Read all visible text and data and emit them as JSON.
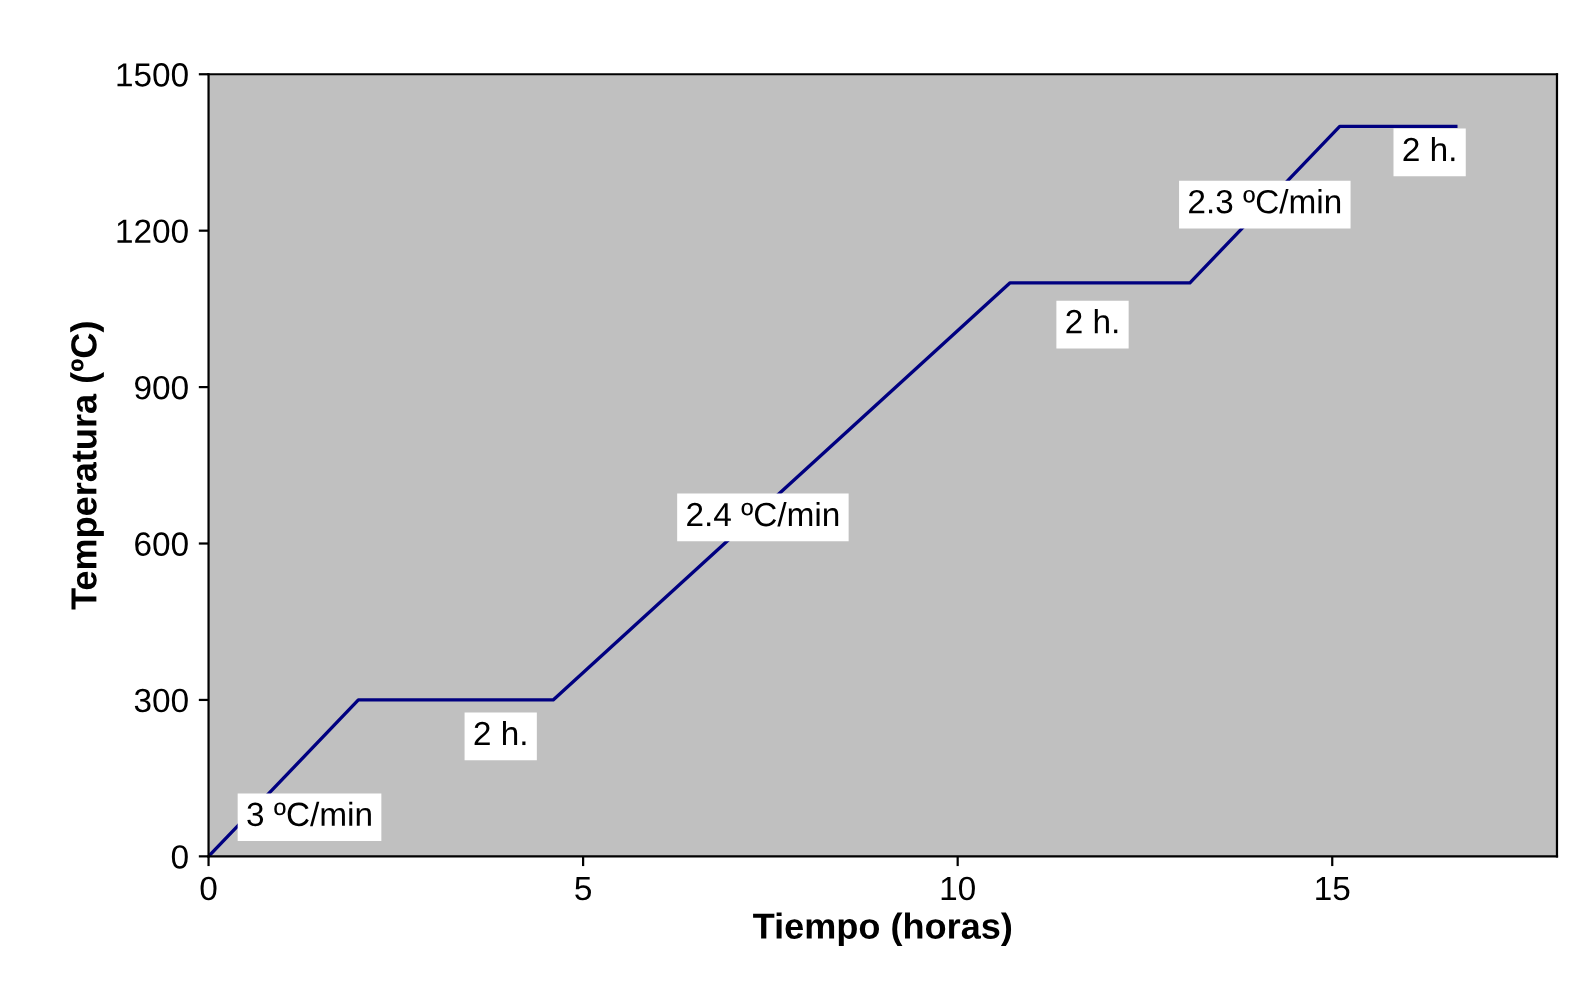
{
  "chart_data": {
    "type": "line",
    "xlabel": "Tiempo (horas)",
    "ylabel": "Temperatura (ºC)",
    "x": [
      0,
      2,
      4.6,
      10.7,
      13.1,
      15.1,
      16.65
    ],
    "series": [
      {
        "color": "#000080",
        "values": [
          0,
          300,
          300,
          1100,
          1100,
          1400,
          1400
        ]
      }
    ],
    "xlim": [
      0,
      18
    ],
    "xticks": [
      0,
      5,
      10,
      15
    ],
    "ylim": [
      0,
      1500
    ],
    "yticks": [
      0,
      300,
      600,
      900,
      1200,
      1500
    ],
    "grid": false,
    "legend": false,
    "marker": "none",
    "line_style": "solid",
    "annotations": [
      {
        "text": "3 ºC/min",
        "x": 0.5,
        "y": 75
      },
      {
        "text": "2 h.",
        "x": 3.9,
        "y": 230
      },
      {
        "text": "2.4 ºC/min",
        "x": 7.4,
        "y": 650
      },
      {
        "text": "2 h.",
        "x": 11.8,
        "y": 1020
      },
      {
        "text": "2.3 ºC/min",
        "x": 14.1,
        "y": 1250
      },
      {
        "text": "2 h.",
        "x": 16.3,
        "y": 1350
      }
    ]
  }
}
